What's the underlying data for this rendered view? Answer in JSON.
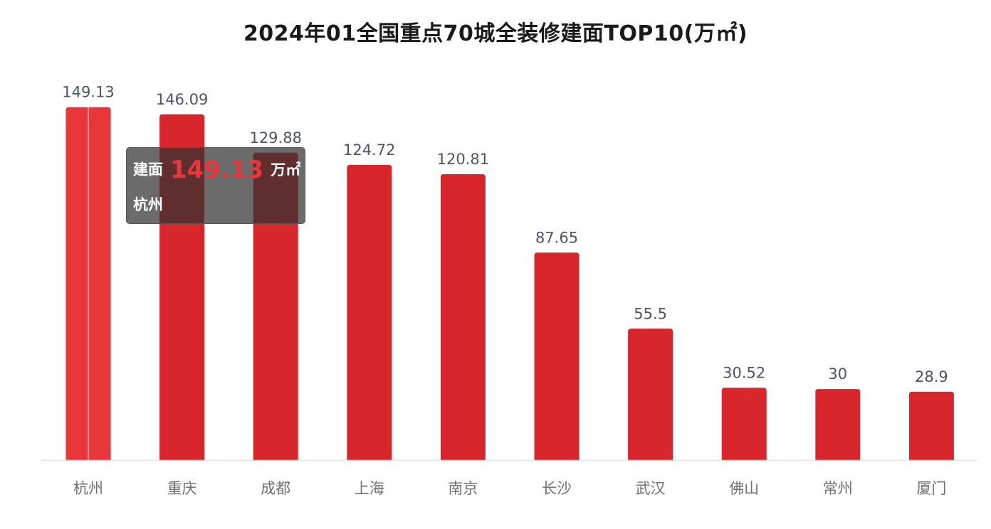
{
  "chart_data": {
    "type": "bar",
    "title": "2024年01全国重点70城全装修建面TOP10(万㎡)",
    "categories": [
      "杭州",
      "重庆",
      "成都",
      "上海",
      "南京",
      "长沙",
      "武汉",
      "佛山",
      "常州",
      "厦门"
    ],
    "series": [
      {
        "name": "建面",
        "values": [
          149.13,
          146.09,
          129.88,
          124.72,
          120.81,
          87.65,
          55.5,
          30.52,
          30,
          28.9
        ],
        "value_labels": [
          "149.13",
          "146.09",
          "129.88",
          "124.72",
          "120.81",
          "87.65",
          "55.5",
          "30.52",
          "30",
          "28.9"
        ]
      }
    ],
    "ylim": [
      0,
      165
    ],
    "grid": false,
    "bar_color": "#d9262c",
    "highlight_color": "#e8363b"
  },
  "tooltip": {
    "series_name": "建面",
    "value": "149.13",
    "unit": "万㎡",
    "category": "杭州"
  },
  "colors": {
    "axis_line": "#dfe3ee",
    "value_label": "#4a5470",
    "tick_label": "#6e7079"
  }
}
